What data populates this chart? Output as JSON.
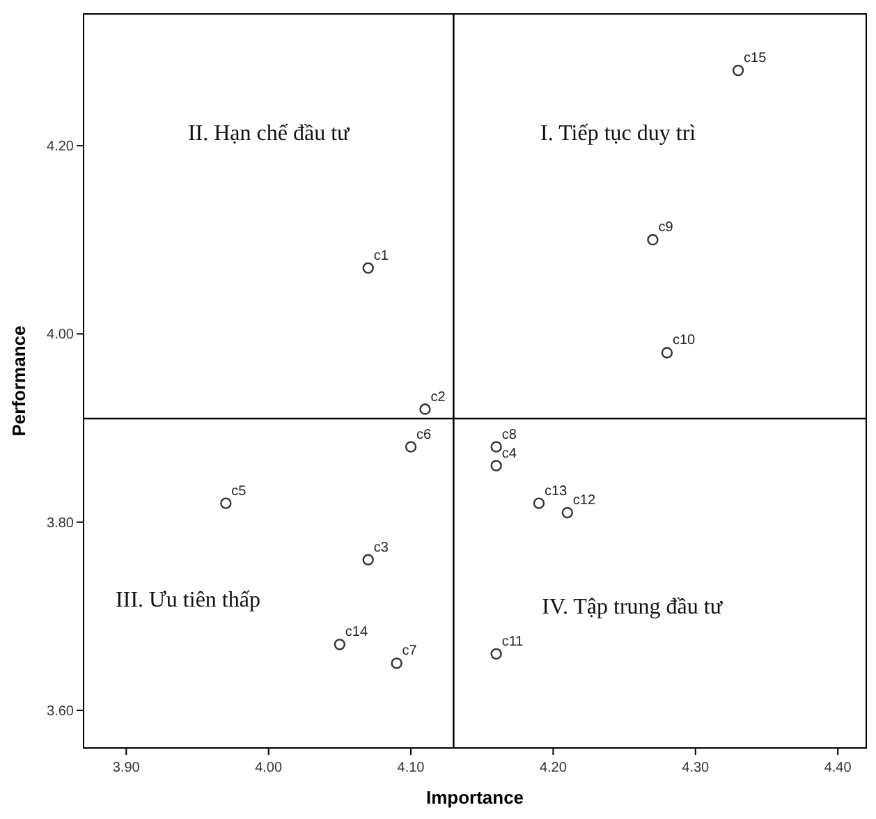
{
  "chart_data": {
    "type": "scatter",
    "xlabel": "Importance",
    "ylabel": "Performance",
    "xlim": [
      3.87,
      4.42
    ],
    "ylim": [
      3.56,
      4.34
    ],
    "xticks": [
      {
        "value": 3.9,
        "label": "3.90"
      },
      {
        "value": 4.0,
        "label": "4.00"
      },
      {
        "value": 4.1,
        "label": "4.10"
      },
      {
        "value": 4.2,
        "label": "4.20"
      },
      {
        "value": 4.3,
        "label": "4.30"
      },
      {
        "value": 4.4,
        "label": "4.40"
      }
    ],
    "yticks": [
      {
        "value": 3.6,
        "label": "3.60"
      },
      {
        "value": 3.8,
        "label": "3.80"
      },
      {
        "value": 4.0,
        "label": "4.00"
      },
      {
        "value": 4.2,
        "label": "4.20"
      }
    ],
    "series": [
      {
        "color": "#333333",
        "x": [
          4.07,
          4.11,
          4.07,
          4.16,
          3.97,
          4.1,
          4.09,
          4.16,
          4.27,
          4.28,
          4.16,
          4.21,
          4.19,
          4.05,
          4.33
        ],
        "values": [
          4.07,
          3.92,
          3.76,
          3.86,
          3.82,
          3.88,
          3.65,
          3.88,
          4.1,
          3.98,
          3.66,
          3.81,
          3.82,
          3.67,
          4.28
        ],
        "value_labels": [
          "c1",
          "c2",
          "c3",
          "c4",
          "c5",
          "c6",
          "c7",
          "c8",
          "c9",
          "c10",
          "c11",
          "c12",
          "c13",
          "c14",
          "c15"
        ]
      }
    ],
    "marker": "circle",
    "grid": false,
    "ref_lines": [
      {
        "axis": "x",
        "value": 4.13,
        "color": "#000000"
      },
      {
        "axis": "y",
        "value": 3.91,
        "color": "#000000"
      }
    ],
    "annotations": [
      "II. Hạn chế đầu tư",
      "I. Tiếp tục duy trì",
      "III. Ưu tiên thấp",
      "IV. Tập trung đầu tư"
    ]
  }
}
